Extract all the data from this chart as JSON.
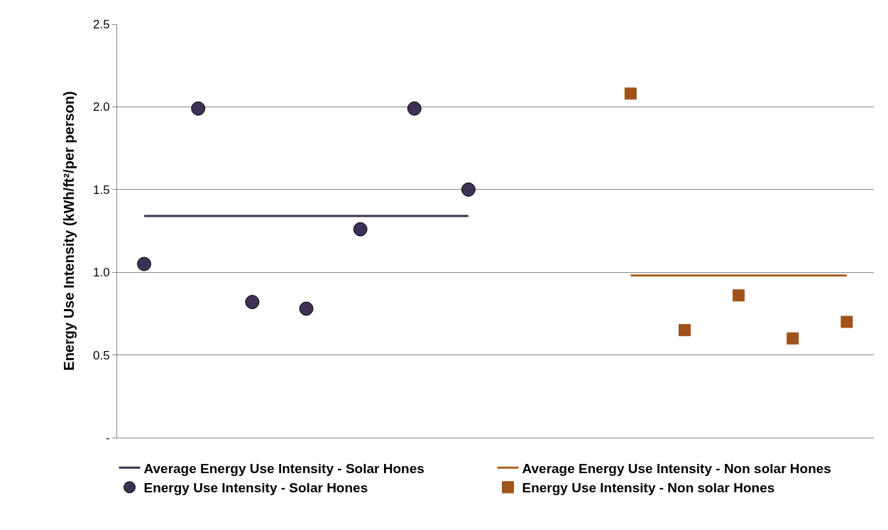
{
  "chart_data": {
    "type": "scatter",
    "ylabel": "Energy Use Intensity (kWh/ft²/per person)",
    "categories": [
      null,
      null,
      null,
      null,
      null,
      null,
      null,
      null,
      null,
      null,
      null,
      null,
      null,
      null
    ],
    "series": [
      {
        "name": "Average Energy Use Intensity - Solar Hones",
        "type": "line",
        "color": "#3f3152",
        "marker": "none",
        "line_style": "solid",
        "values": [
          1.34,
          1.34,
          1.34,
          1.34,
          1.34,
          1.34,
          1.34,
          null,
          null,
          null,
          null,
          null,
          null,
          null
        ]
      },
      {
        "name": "Average Energy Use Intensity - Non solar Hones",
        "type": "line",
        "color": "#b0601e",
        "marker": "none",
        "line_style": "solid",
        "values": [
          null,
          null,
          null,
          null,
          null,
          null,
          null,
          null,
          null,
          0.98,
          0.98,
          0.98,
          0.98,
          0.98
        ]
      },
      {
        "name": "Energy Use Intensity - Solar Hones",
        "type": "scatter",
        "color": "#3d3155",
        "marker": "circle",
        "values": [
          1.05,
          1.99,
          0.82,
          0.78,
          1.26,
          1.99,
          1.5,
          null,
          null,
          null,
          null,
          null,
          null,
          null
        ]
      },
      {
        "name": "Energy Use Intensity - Non solar Hones",
        "type": "scatter",
        "color": "#a0521a",
        "marker": "square",
        "values": [
          null,
          null,
          null,
          null,
          null,
          null,
          null,
          null,
          null,
          2.08,
          0.65,
          0.86,
          0.6,
          0.7
        ]
      }
    ],
    "ylim": [
      0,
      2.5
    ],
    "yticks": [
      {
        "value": 0,
        "label": "-"
      },
      0.5,
      {
        "value": 1,
        "label": "1.0"
      },
      1.5,
      {
        "value": 2,
        "label": "2.0"
      },
      2.5
    ],
    "grid": "y",
    "legend": "bottom",
    "tick_labels": "y"
  }
}
